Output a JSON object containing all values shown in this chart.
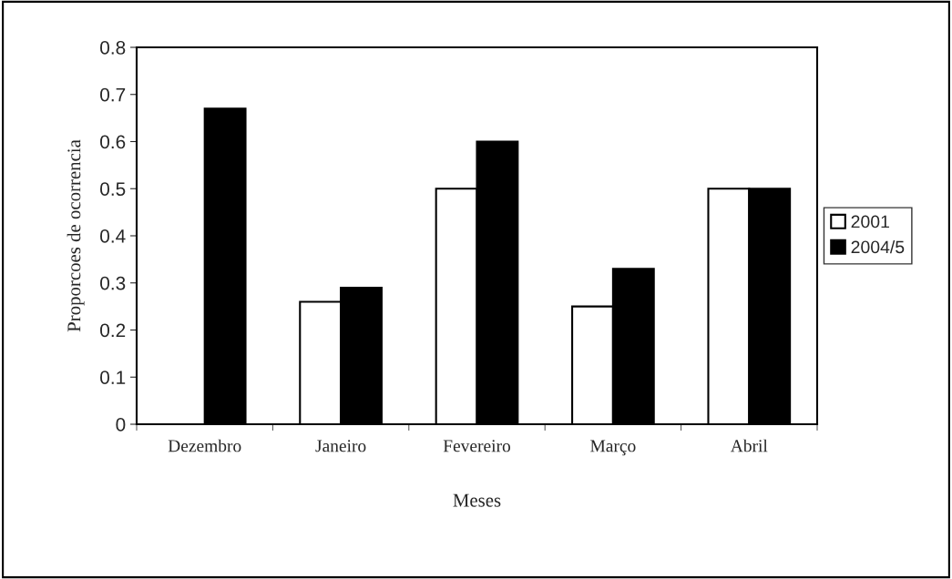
{
  "chart_data": {
    "type": "bar",
    "xlabel": "Meses",
    "ylabel": "Proporcoes de ocorrencia",
    "categories": [
      "Dezembro",
      "Janeiro",
      "Fevereiro",
      "Março",
      "Abril"
    ],
    "series": [
      {
        "name": "2001",
        "color": "#ffffff",
        "values": [
          null,
          0.26,
          0.5,
          0.25,
          0.5
        ]
      },
      {
        "name": "2004/5",
        "color": "#000000",
        "values": [
          0.67,
          0.29,
          0.6,
          0.33,
          0.5
        ]
      }
    ],
    "ylim": [
      0,
      0.8
    ],
    "yticks": [
      0,
      0.1,
      0.2,
      0.3,
      0.4,
      0.5,
      0.6,
      0.7,
      0.8
    ],
    "legend": "right",
    "grid": false
  }
}
